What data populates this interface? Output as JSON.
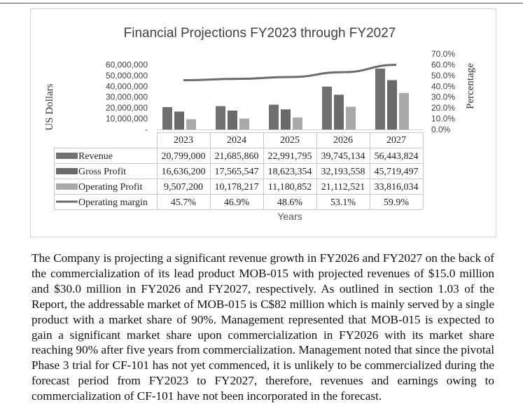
{
  "chart_data": {
    "type": "bar",
    "title": "Financial Projections FY2023 through FY2027",
    "xlabel": "Years",
    "ylabel": "US Dollars",
    "y2label": "Percentage",
    "ylim": [
      0,
      70000000
    ],
    "y2lim": [
      0,
      0.7
    ],
    "yticks": [
      "-",
      "10,000,000",
      "20,000,000",
      "30,000,000",
      "40,000,000",
      "50,000,000",
      "60,000,000"
    ],
    "y2ticks": [
      "0.0%",
      "10.0%",
      "20.0%",
      "30.0%",
      "40.0%",
      "50.0%",
      "60.0%",
      "70.0%"
    ],
    "categories": [
      "2023",
      "2024",
      "2025",
      "2026",
      "2027"
    ],
    "series": [
      {
        "name": "Revenue",
        "kind": "bar",
        "color": "#707070",
        "values": [
          20799000,
          21685860,
          22991795,
          39745134,
          56443824
        ],
        "labels": [
          "20,799,000",
          "21,685,860",
          "22,991,795",
          "39,745,134",
          "56,443,824"
        ]
      },
      {
        "name": "Gross Profit",
        "kind": "bar",
        "color": "#6a6a6a",
        "values": [
          16636200,
          17565547,
          18623354,
          32193558,
          45719497
        ],
        "labels": [
          "16,636,200",
          "17,565,547",
          "18,623,354",
          "32,193,558",
          "45,719,497"
        ]
      },
      {
        "name": "Operating Profit",
        "kind": "bar",
        "color": "#a9a9a9",
        "values": [
          9507200,
          10178217,
          11180852,
          21112521,
          33816034
        ],
        "labels": [
          "9,507,200",
          "10,178,217",
          "11,180,852",
          "21,112,521",
          "33,816,034"
        ]
      },
      {
        "name": "Operating margin",
        "kind": "line",
        "axis": "secondary",
        "color": "#6b6b6b",
        "values": [
          0.457,
          0.469,
          0.486,
          0.531,
          0.599
        ],
        "labels": [
          "45.7%",
          "46.9%",
          "48.6%",
          "53.1%",
          "59.9%"
        ]
      }
    ],
    "legend": "table-below",
    "grid": false
  },
  "paragraph": "The Company is projecting a significant revenue growth in FY2026 and FY2027 on the back of the commercialization of its lead product MOB-015 with projected revenues of $15.0 million and $30.0 million in FY2026 and FY2027, respectively. As outlined in section 1.03 of the Report, the addressable market of MOB-015 is C$82 million which is mainly served by a single product with a market share of 90%. Management represented that MOB-015 is expected to gain a significant market share upon commercialization in FY2026 with its market share reaching 90% after five years from commercialization. Management noted that since the pivotal Phase 3 trial for CF-101 has not yet commenced, it is unlikely to be commercialized during the forecast period from FY2023 to FY2027, therefore, revenues and earnings owing to commercialization of CF-101 have not been incorporated in the forecast."
}
